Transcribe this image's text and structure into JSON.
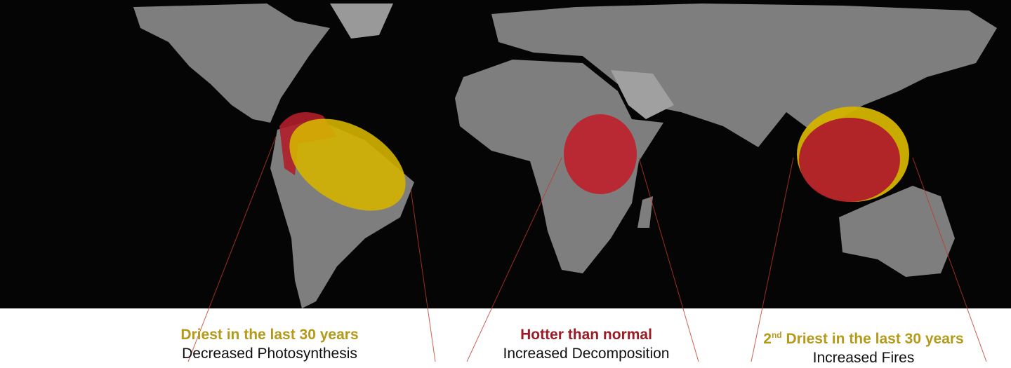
{
  "colors": {
    "dry": "#d4b400",
    "hot": "#b01e2a",
    "land": "#8a8a8a",
    "ocean": "#050505"
  },
  "regions": [
    {
      "name": "amazon",
      "title": "Driest in the last 30 years",
      "title_prefix": "",
      "title_sup": "",
      "subtitle": "Decreased Photosynthesis",
      "color": "#b59a1a"
    },
    {
      "name": "africa",
      "title": "Hotter than normal",
      "title_prefix": "",
      "title_sup": "",
      "subtitle": "Increased Decomposition",
      "color": "#9b1c25"
    },
    {
      "name": "indonesia",
      "title": " Driest in the last 30 years",
      "title_prefix": "2",
      "title_sup": "nd",
      "subtitle": "Increased Fires",
      "color": "#b59a1a"
    }
  ]
}
